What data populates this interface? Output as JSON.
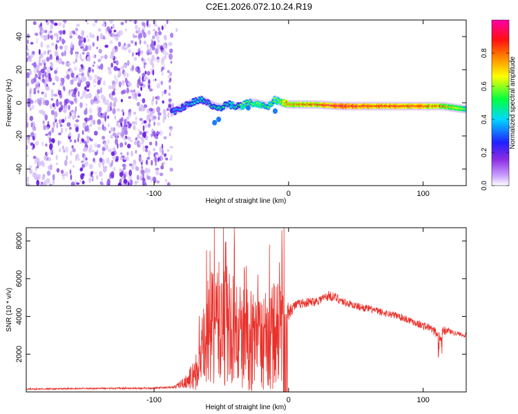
{
  "title": "C2E1.2026.072.10.24.R19",
  "chart_data": [
    {
      "type": "heatmap",
      "xlabel": "Height of straight line (km)",
      "ylabel": "Frequency (Hz)",
      "xlim": [
        -195,
        132
      ],
      "ylim": [
        -50,
        50
      ],
      "x_ticks": [
        -100,
        0,
        100
      ],
      "x_tick_labels": [
        "-100",
        "0",
        "100"
      ],
      "y_ticks": [
        -40,
        -20,
        0,
        20,
        40
      ],
      "y_tick_labels": [
        "-40",
        "-20",
        "0",
        "20",
        "40"
      ],
      "colorbar": {
        "label": "Normalized spectral amplitude",
        "range": [
          0,
          1
        ],
        "ticks": [
          0.0,
          0.2,
          0.4,
          0.6,
          0.8
        ],
        "tick_labels": [
          "0.0",
          "0.2",
          "0.4",
          "0.6",
          "0.8"
        ],
        "colors": [
          "#ffffff",
          "#8a2be2",
          "#0000ff",
          "#00ffff",
          "#00ff00",
          "#ffff00",
          "#ff8000",
          "#ff0000",
          "#ff00a0"
        ]
      },
      "noise_region_x": [
        -195,
        -87
      ],
      "signal_track": {
        "x": [
          -87,
          -80,
          -72,
          -65,
          -60,
          -55,
          -50,
          -45,
          -40,
          -35,
          -30,
          -25,
          -20,
          -15,
          -10,
          -5,
          0,
          10,
          20,
          40,
          60,
          80,
          100,
          115,
          132
        ],
        "frequency": [
          -6,
          -3,
          0,
          2,
          0,
          -2,
          -3,
          -1,
          -2,
          -2,
          0,
          0,
          -1,
          -2,
          2,
          0,
          -1,
          -1,
          -1,
          -2,
          -2,
          -2,
          -2,
          -2,
          -4
        ],
        "amplitude": [
          0.3,
          0.35,
          0.4,
          0.45,
          0.4,
          0.45,
          0.5,
          0.45,
          0.5,
          0.55,
          0.55,
          0.6,
          0.6,
          0.55,
          0.55,
          0.7,
          0.8,
          0.8,
          0.85,
          0.95,
          0.9,
          0.9,
          0.85,
          0.8,
          0.6
        ]
      }
    },
    {
      "type": "line",
      "xlabel": "Height of straight line (km)",
      "ylabel": "SNR (10 * v/v)",
      "xlim": [
        -195,
        132
      ],
      "ylim": [
        0,
        8700
      ],
      "x_ticks": [
        -100,
        0,
        100
      ],
      "x_tick_labels": [
        "-100",
        "0",
        "100"
      ],
      "y_ticks": [
        2000,
        4000,
        6000,
        8000
      ],
      "y_tick_labels": [
        "2000",
        "4000",
        "6000",
        "8000"
      ],
      "series": [
        {
          "name": "SNR",
          "color": "#e8302a",
          "x": [
            -195,
            -150,
            -100,
            -85,
            -75,
            -70,
            -66,
            -63,
            -60,
            -55,
            -50,
            -45,
            -40,
            -35,
            -30,
            -25,
            -20,
            -15,
            -10,
            -7,
            -5,
            -3,
            0,
            5,
            10,
            20,
            25,
            30,
            35,
            40,
            50,
            60,
            70,
            80,
            90,
            100,
            105,
            110,
            112,
            115,
            118,
            120,
            125,
            132
          ],
          "values": [
            150,
            180,
            200,
            250,
            600,
            900,
            1500,
            2300,
            3000,
            3600,
            3600,
            3400,
            3000,
            2800,
            2800,
            2700,
            2600,
            2700,
            3000,
            3000,
            3200,
            3800,
            4300,
            4600,
            4700,
            4800,
            4950,
            5100,
            5000,
            4800,
            4550,
            4400,
            4200,
            4050,
            3800,
            3500,
            3400,
            3100,
            2800,
            3200,
            3300,
            3200,
            3100,
            3000
          ],
          "spread": [
            40,
            40,
            50,
            60,
            400,
            900,
            1500,
            2400,
            3000,
            3200,
            3400,
            3300,
            3000,
            2800,
            2800,
            2700,
            2600,
            2700,
            3000,
            3000,
            2600,
            1200,
            500,
            250,
            250,
            250,
            250,
            280,
            250,
            220,
            200,
            200,
            200,
            200,
            200,
            220,
            220,
            250,
            400,
            300,
            200,
            150,
            120,
            120
          ]
        }
      ]
    }
  ]
}
